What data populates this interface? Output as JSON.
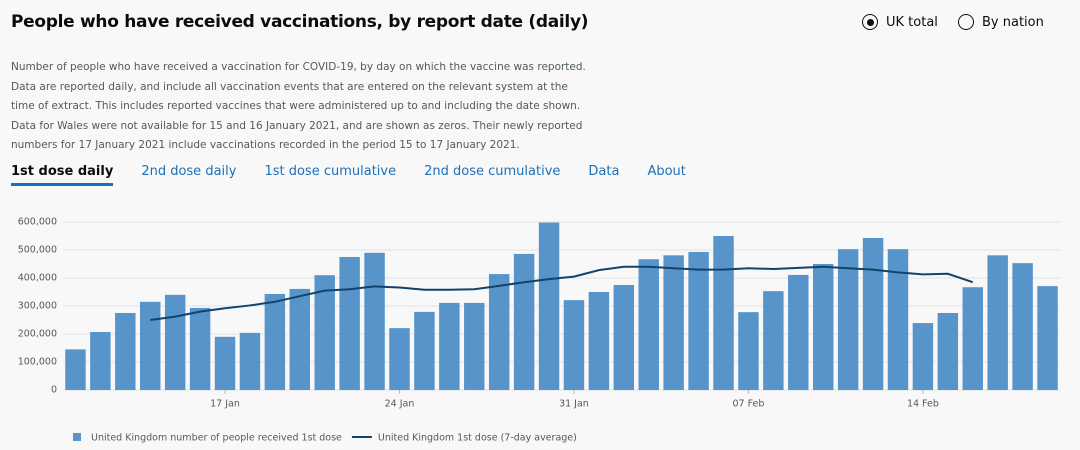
{
  "title": "People who have received vaccinations, by report date (daily)",
  "options": [
    "UK total",
    "By nation"
  ],
  "description": [
    "Number of people who have received a vaccination for COVID-19, by day on which the vaccine was reported.",
    "Data are reported daily, and include all vaccination events that are entered on the relevant system at the",
    "time of extract. This includes reported vaccines that were administered up to and including the date shown.",
    "Data for Wales were not available for 15 and 16 January 2021, and are shown as zeros. Their newly reported",
    "numbers for 17 January 2021 include vaccinations recorded in the period 15 to 17 January 2021."
  ],
  "tabs": [
    "1st dose daily",
    "2nd dose daily",
    "1st dose cumulative",
    "2nd dose cumulative",
    "Data",
    "About"
  ],
  "chart_data": {
    "type": "bar",
    "categories": [
      null,
      null,
      null,
      null,
      null,
      null,
      "17 Jan",
      null,
      null,
      null,
      null,
      null,
      null,
      "24 Jan",
      null,
      null,
      null,
      null,
      null,
      null,
      "31 Jan",
      null,
      null,
      null,
      null,
      null,
      null,
      "07 Feb",
      null,
      null,
      null,
      null,
      null,
      null,
      "14 Feb",
      null,
      null,
      null,
      null,
      null
    ],
    "series": [
      {
        "name": "United Kingdom number of people received 1st dose",
        "type": "bar",
        "color": "#5694ca",
        "values": [
          145000,
          207000,
          275000,
          315000,
          340000,
          293000,
          190000,
          204000,
          343000,
          361000,
          410000,
          475000,
          490000,
          221000,
          279000,
          311000,
          311000,
          414000,
          486000,
          598000,
          321000,
          350000,
          375000,
          467000,
          481000,
          493000,
          550000,
          278000,
          353000,
          411000,
          450000,
          503000,
          543000,
          503000,
          239000,
          275000,
          367000,
          481000,
          453000,
          371000
        ]
      },
      {
        "name": "United Kingdom 1st dose (7-day average)",
        "type": "line",
        "color": "#12436d",
        "values": [
          null,
          null,
          null,
          250000,
          262000,
          280000,
          292000,
          302000,
          315000,
          335000,
          355000,
          360000,
          370000,
          366000,
          358000,
          358000,
          360000,
          372000,
          385000,
          396000,
          405000,
          428000,
          440000,
          440000,
          435000,
          430000,
          430000,
          435000,
          432000,
          436000,
          440000,
          435000,
          430000,
          420000,
          413000,
          415000,
          385000,
          null,
          null,
          null
        ]
      }
    ],
    "ylim": [
      0,
      600000
    ],
    "yticks": [
      0,
      {
        "value": 100000,
        "label": "100,000"
      },
      {
        "value": 200000,
        "label": "200,000"
      },
      {
        "value": 300000,
        "label": "300,000"
      },
      {
        "value": 400000,
        "label": "400,000"
      },
      {
        "value": 500000,
        "label": "500,000"
      },
      {
        "value": 600000,
        "label": "600,000"
      }
    ],
    "grid": true
  }
}
